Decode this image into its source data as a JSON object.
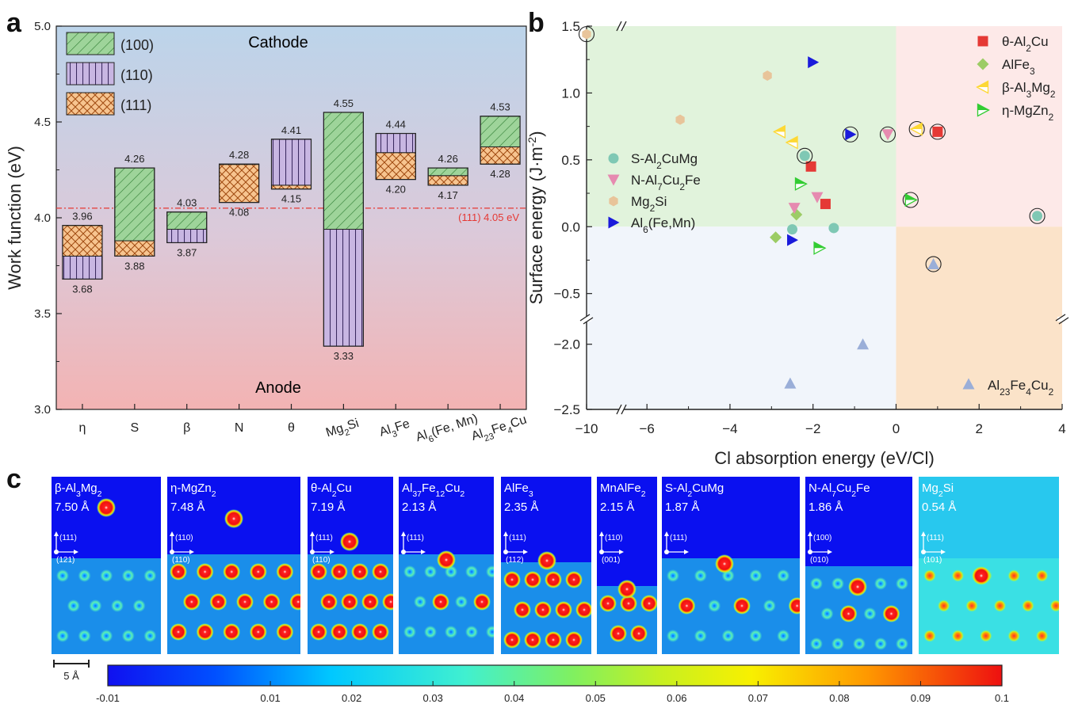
{
  "panels": {
    "a": "a",
    "b": "b",
    "c": "c"
  },
  "colors": {
    "p100_fill": "#9ed49a",
    "p100_stroke": "#2e7d32",
    "p110_fill": "#c8b6e2",
    "p110_stroke": "#3b2a60",
    "p111_fill": "#f7c48f",
    "p111_stroke": "#a04a10",
    "ref_line": "#e53935",
    "theta": "#e53935",
    "alfe3": "#9ccc65",
    "beta": "#fdd835",
    "eta": "#33cc33",
    "s": "#7fc8b4",
    "n": "#e68ab0",
    "mg2si": "#e8c49a",
    "al6": "#1a1adb",
    "al23": "#9aaed8"
  },
  "chart_data": [
    {
      "type": "bar",
      "subtype": "floating-range",
      "panel": "a",
      "ylabel": "Work function (eV)",
      "ylim": [
        3.0,
        5.0
      ],
      "yticks": [
        "3.0",
        "3.5",
        "4.0",
        "4.5",
        "5.0"
      ],
      "categories": [
        "η",
        "S",
        "β",
        "N",
        "θ",
        "Mg2Si",
        "Al3Fe",
        "Al6(Fe, Mn)",
        "Al23Fe4Cu"
      ],
      "category_labels": [
        {
          "main": "η"
        },
        {
          "main": "S"
        },
        {
          "main": "β"
        },
        {
          "main": "N"
        },
        {
          "main": "θ"
        },
        {
          "main": "Mg",
          "sub1": "2",
          "rest": "Si"
        },
        {
          "main": "Al",
          "sub1": "3",
          "rest": "Fe"
        },
        {
          "main": "Al",
          "sub1": "6",
          "rest": "(Fe, Mn)"
        },
        {
          "main": "Al",
          "sub1": "23",
          "mid": "Fe",
          "sub2": "4",
          "rest": "Cu"
        }
      ],
      "series": [
        {
          "name": "(100)",
          "values": [
            3.8,
            4.26,
            4.03,
            4.28,
            4.17,
            4.55,
            4.34,
            4.26,
            4.53
          ]
        },
        {
          "name": "(110)",
          "values": [
            3.68,
            3.88,
            3.87,
            4.28,
            4.41,
            3.33,
            4.44,
            4.22,
            4.37
          ]
        },
        {
          "name": "(111)",
          "values": [
            3.96,
            3.8,
            3.94,
            4.08,
            4.15,
            3.94,
            4.2,
            4.17,
            4.28
          ]
        }
      ],
      "range_labels": [
        {
          "max": "3.96",
          "min": "3.68"
        },
        {
          "max": "4.26",
          "min": "3.88"
        },
        {
          "max": "4.03",
          "min": "3.87"
        },
        {
          "max": "4.28",
          "min": "4.08"
        },
        {
          "max": "4.41",
          "min": "4.15"
        },
        {
          "max": "4.55",
          "min": "3.33"
        },
        {
          "max": "4.44",
          "min": "4.20"
        },
        {
          "max": "4.26",
          "min": "4.17"
        },
        {
          "max": "4.53",
          "min": "4.28"
        }
      ],
      "reference_line": {
        "value": 4.05,
        "label": "(111) 4.05 eV"
      },
      "regions": {
        "top": "Cathode",
        "bottom": "Anode"
      },
      "legend": [
        "(100)",
        "(110)",
        "(111)"
      ],
      "legend_position": "top-left"
    },
    {
      "type": "scatter",
      "panel": "b",
      "xlabel": "Cl absorption energy (eV/Cl)",
      "ylabel": "Surface energy (J·m⁻²)",
      "xlim": [
        -10,
        4
      ],
      "ylim_upper": [
        -0.65,
        1.5
      ],
      "ylim_lower": [
        -2.5,
        -1.85
      ],
      "xticks": [
        "-10",
        "-6",
        "-4",
        "-2",
        "0",
        "2",
        "4"
      ],
      "yticks_upper": [
        "1.5",
        "1.0",
        "0.5",
        "0.0",
        "-0.5"
      ],
      "yticks_lower": [
        "-2.0",
        "-2.5"
      ],
      "series": [
        {
          "name": "θ-Al2Cu",
          "marker": "square",
          "points": [
            [
              -2.05,
              0.45
            ],
            [
              -1.7,
              0.17
            ],
            [
              1.0,
              0.71
            ]
          ],
          "circled": [
            false,
            false,
            true
          ]
        },
        {
          "name": "AlFe3",
          "marker": "diamond",
          "points": [
            [
              -2.4,
              0.09
            ],
            [
              -2.9,
              -0.08
            ]
          ],
          "circled": [
            false,
            false
          ]
        },
        {
          "name": "β-Al3Mg2",
          "marker": "tri-left",
          "points": [
            [
              -2.8,
              0.71
            ],
            [
              -2.5,
              0.63
            ],
            [
              0.5,
              0.73
            ]
          ],
          "circled": [
            false,
            false,
            true
          ]
        },
        {
          "name": "η-MgZn2",
          "marker": "tri-right-split",
          "points": [
            [
              -2.3,
              0.32
            ],
            [
              -1.85,
              -0.16
            ],
            [
              0.35,
              0.2
            ]
          ],
          "circled": [
            false,
            false,
            true
          ]
        },
        {
          "name": "S-Al2CuMg",
          "marker": "circle",
          "points": [
            [
              -2.2,
              0.53
            ],
            [
              -2.5,
              -0.02
            ],
            [
              -1.5,
              -0.01
            ],
            [
              3.4,
              0.08
            ]
          ],
          "circled": [
            true,
            false,
            false,
            true
          ]
        },
        {
          "name": "N-Al7Cu2Fe",
          "marker": "tri-down",
          "points": [
            [
              -2.45,
              0.14
            ],
            [
              -1.9,
              0.22
            ],
            [
              -0.2,
              0.69
            ]
          ],
          "circled": [
            false,
            false,
            true
          ]
        },
        {
          "name": "Mg2Si",
          "marker": "hexagon",
          "points": [
            [
              -10.0,
              1.44
            ],
            [
              -5.2,
              0.8
            ],
            [
              -3.1,
              1.13
            ]
          ],
          "circled": [
            true,
            false,
            false
          ]
        },
        {
          "name": "Al6(Fe,Mn)",
          "marker": "tri-right",
          "points": [
            [
              -2.0,
              1.23
            ],
            [
              -1.1,
              0.69
            ],
            [
              -2.5,
              -0.1
            ]
          ],
          "circled": [
            false,
            true,
            false
          ]
        },
        {
          "name": "Al23Fe4Cu2",
          "marker": "triangle",
          "points": [
            [
              0.9,
              -0.28
            ],
            [
              -0.8,
              -2.0
            ],
            [
              -2.55,
              -2.3
            ]
          ],
          "circled": [
            true,
            false,
            false
          ]
        }
      ],
      "legend_right": [
        {
          "pre": "θ-Al",
          "sub": "2",
          "post": "Cu"
        },
        {
          "pre": "AlFe",
          "sub": "3",
          "post": ""
        },
        {
          "pre": "β-Al",
          "sub": "3",
          "post": "Mg",
          "sub2": "2"
        },
        {
          "pre": "η-MgZn",
          "sub": "2",
          "post": ""
        }
      ],
      "legend_left": [
        {
          "pre": "S-Al",
          "sub": "2",
          "post": "CuMg"
        },
        {
          "pre": "N-Al",
          "sub": "7",
          "post": "Cu",
          "sub2": "2",
          "post2": "Fe"
        },
        {
          "pre": "Mg",
          "sub": "2",
          "post": "Si"
        },
        {
          "pre": "Al",
          "sub": "6",
          "post": "(Fe,Mn)"
        }
      ],
      "legend_bottom": {
        "pre": "Al",
        "sub": "23",
        "post": "Fe",
        "sub2": "4",
        "post2": "Cu",
        "sub3": "2"
      },
      "quadrant_colors": {
        "top_left": "#e1f3dc",
        "top_right": "#fde9e8",
        "bottom_left": "#f1f5fb",
        "bottom_right": "#fbe3c9"
      }
    },
    {
      "type": "heatmap",
      "panel": "c",
      "tiles": [
        {
          "title": "β-Al3Mg2",
          "t_pre": "β-Al",
          "t_sub": "3",
          "t_post": "Mg",
          "t_sub2": "2",
          "distance": "7.50 Å",
          "dir1": "(111)",
          "dir2": "(121)"
        },
        {
          "title": "η-MgZn2",
          "t_pre": "η-MgZn",
          "t_sub": "2",
          "t_post": "",
          "distance": "7.48 Å",
          "dir1": "(110)",
          "dir2": "(110)"
        },
        {
          "title": "θ-Al2Cu",
          "t_pre": "θ-Al",
          "t_sub": "2",
          "t_post": "Cu",
          "distance": "7.19 Å",
          "dir1": "(111)",
          "dir2": "(110)"
        },
        {
          "title": "Al37Fe12Cu2",
          "t_pre": "Al",
          "t_sub": "37",
          "t_post": "Fe",
          "t_sub2": "12",
          "t_post2": "Cu",
          "t_sub3": "2",
          "distance": "2.13 Å",
          "dir1": "(111)",
          "dir2": ""
        },
        {
          "title": "AlFe3",
          "t_pre": "AlFe",
          "t_sub": "3",
          "t_post": "",
          "distance": "2.35 Å",
          "dir1": "(111)",
          "dir2": "(112)"
        },
        {
          "title": "MnAlFe2",
          "t_pre": "MnAlFe",
          "t_sub": "2",
          "t_post": "",
          "distance": "2.15 Å",
          "dir1": "(110)",
          "dir2": "(001)"
        },
        {
          "title": "S-Al2CuMg",
          "t_pre": "S-Al",
          "t_sub": "2",
          "t_post": "CuMg",
          "distance": "1.87 Å",
          "dir1": "(111)",
          "dir2": ""
        },
        {
          "title": "N-Al7Cu2Fe",
          "t_pre": "N-Al",
          "t_sub": "7",
          "t_post": "Cu",
          "t_sub2": "2",
          "t_post2": "Fe",
          "distance": "1.86 Å",
          "dir1": "(100)",
          "dir2": "(010)"
        },
        {
          "title": "Mg2Si",
          "t_pre": "Mg",
          "t_sub": "2",
          "t_post": "Si",
          "distance": "0.54 Å",
          "dir1": "(111)",
          "dir2": "(101)"
        }
      ],
      "scale_bar": "5 Å",
      "colorbar_ticks": [
        "-0.01",
        "0.01",
        "0.02",
        "0.03",
        "0.04",
        "0.05",
        "0.06",
        "0.07",
        "0.08",
        "0.09",
        "0.1"
      ],
      "colorbar_range": [
        -0.01,
        0.1
      ]
    }
  ]
}
